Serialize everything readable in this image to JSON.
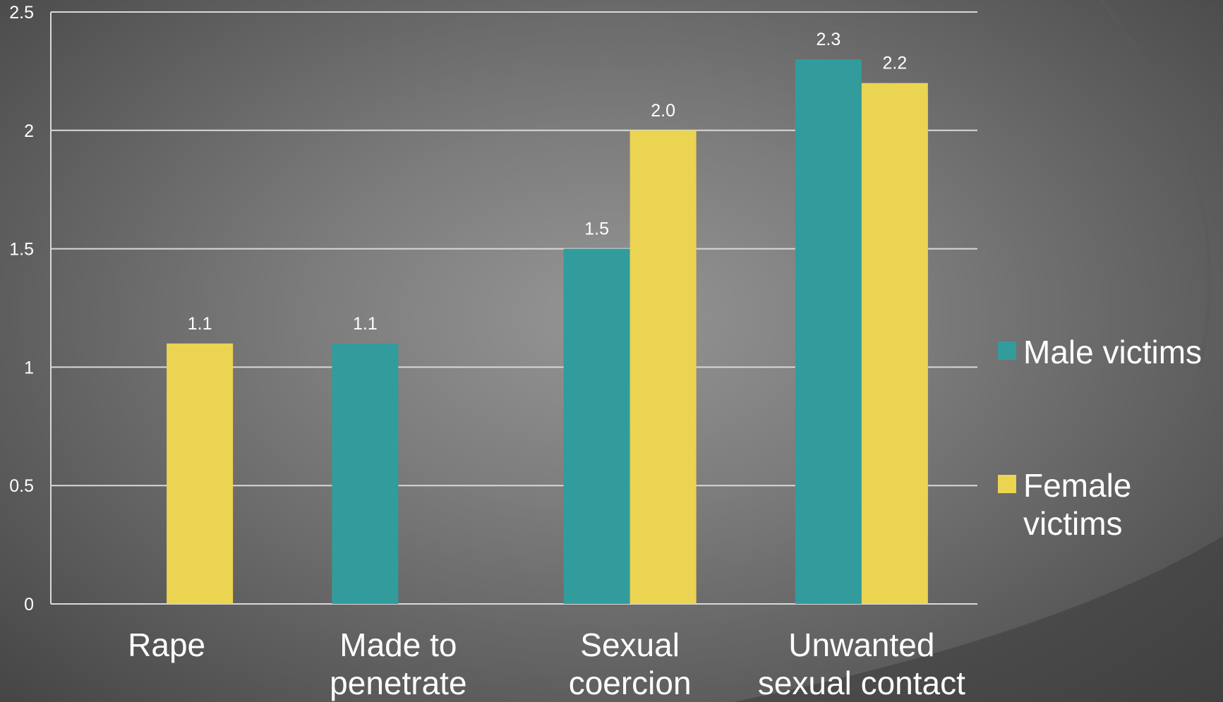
{
  "chart_data": {
    "type": "bar",
    "categories": [
      "Rape",
      "Made to penetrate",
      "Sexual coercion",
      "Unwanted sexual contact"
    ],
    "category_lines": [
      [
        "Rape"
      ],
      [
        "Made to",
        "penetrate"
      ],
      [
        "Sexual",
        "coercion"
      ],
      [
        "Unwanted",
        "sexual contact"
      ]
    ],
    "series": [
      {
        "name": "Male victims",
        "values": [
          null,
          1.1,
          1.5,
          2.3
        ],
        "labels": [
          "",
          "1.1",
          "1.5",
          "2.3"
        ],
        "color": "#329c9c"
      },
      {
        "name": "Female victims",
        "values": [
          1.1,
          null,
          2.0,
          2.2
        ],
        "labels": [
          "1.1",
          "",
          "2.0",
          "2.2"
        ],
        "color": "#ead452"
      }
    ],
    "ylim": [
      0,
      2.5
    ],
    "yticks": [
      "0",
      "0.5",
      "1",
      "1.5",
      "2",
      "2.5"
    ],
    "grid": true,
    "legend_position": "right",
    "title": "",
    "xlabel": "",
    "ylabel": ""
  },
  "legend": {
    "male": {
      "label": "Male victims",
      "color": "#329c9c"
    },
    "female": {
      "label": "Female victims",
      "color": "#ead452"
    }
  }
}
